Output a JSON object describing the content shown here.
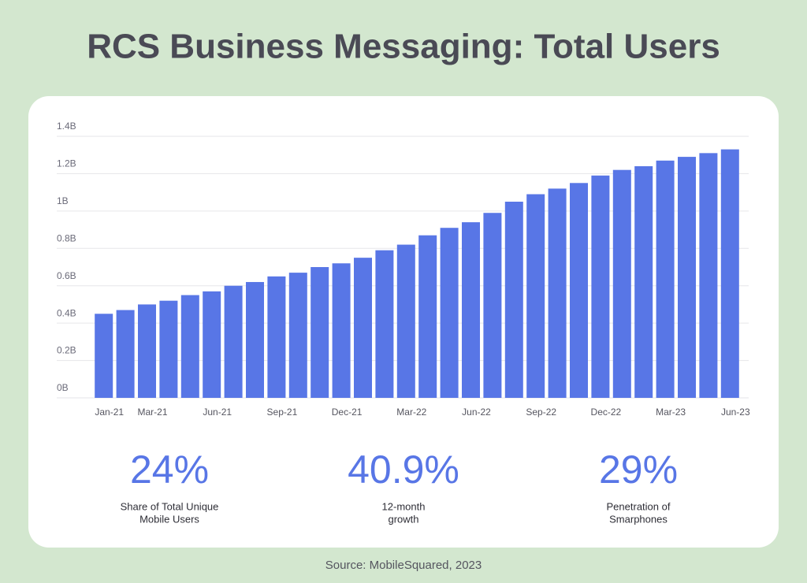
{
  "chart_data": {
    "type": "bar",
    "title": "RCS Business Messaging: Total Users",
    "categories": [
      "Jan-21",
      null,
      "Mar-21",
      null,
      null,
      "Jun-21",
      null,
      null,
      "Sep-21",
      null,
      null,
      "Dec-21",
      null,
      null,
      "Mar-22",
      null,
      null,
      "Jun-22",
      null,
      null,
      "Sep-22",
      null,
      null,
      "Dec-22",
      null,
      null,
      "Mar-23",
      null,
      null,
      "Jun-23"
    ],
    "values": [
      450000000,
      470000000,
      500000000,
      520000000,
      550000000,
      570000000,
      600000000,
      620000000,
      650000000,
      670000000,
      700000000,
      720000000,
      750000000,
      790000000,
      820000000,
      870000000,
      910000000,
      940000000,
      990000000,
      1050000000,
      1090000000,
      1120000000,
      1150000000,
      1190000000,
      1220000000,
      1240000000,
      1270000000,
      1290000000,
      1310000000,
      1330000000
    ],
    "color": "#5876e6",
    "ylim": [
      0,
      1400000000
    ],
    "yticks": [
      {
        "value": 0,
        "label": "0B"
      },
      {
        "value": 200000000,
        "label": "0.2B"
      },
      {
        "value": 400000000,
        "label": "0.4B"
      },
      {
        "value": 600000000,
        "label": "0.6B"
      },
      {
        "value": 800000000,
        "label": "0.8B"
      },
      {
        "value": 1000000000,
        "label": "1B"
      },
      {
        "value": 1200000000,
        "label": "1.2B"
      },
      {
        "value": 1400000000,
        "label": "1.4B"
      }
    ],
    "grid": true
  },
  "stats": [
    {
      "value": "24%",
      "label": [
        "Share of Total Unique",
        "Mobile Users"
      ]
    },
    {
      "value": "40.9%",
      "label": [
        "12-month",
        "growth"
      ]
    },
    {
      "value": "29%",
      "label": [
        "Penetration of",
        "Smarphones"
      ]
    }
  ],
  "source": "Source: MobileSquared, 2023"
}
